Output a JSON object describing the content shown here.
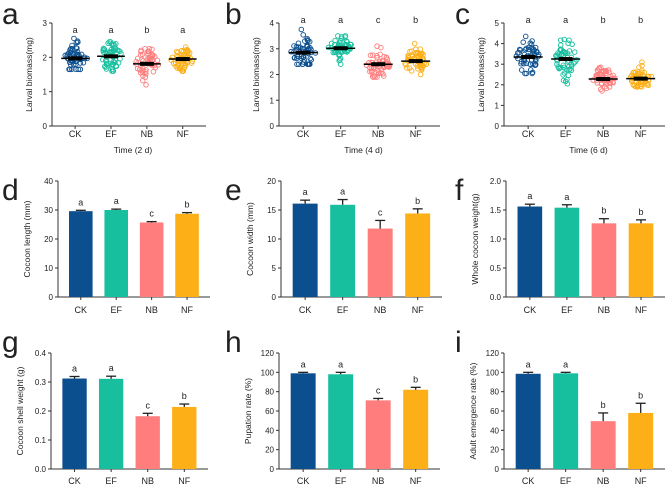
{
  "colors": {
    "CK": "#0b4f8e",
    "EF": "#17bf9f",
    "NB": "#ff7d7d",
    "NF": "#fcaf17"
  },
  "chart_data": [
    {
      "panel": "a",
      "type": "scatter",
      "categories": [
        "CK",
        "EF",
        "NB",
        "NF"
      ],
      "ylabel": "Larval biomass(mg)",
      "xlabel": "Time (2 d)",
      "ylim": [
        0,
        3
      ],
      "yticks": [
        "0",
        "1",
        "2",
        "3"
      ],
      "means": [
        1.97,
        2.03,
        1.81,
        1.95
      ],
      "ranges": [
        [
          1.65,
          2.55
        ],
        [
          1.6,
          2.45
        ],
        [
          1.2,
          2.25
        ],
        [
          1.6,
          2.3
        ]
      ],
      "letters": [
        "a",
        "a",
        "b",
        "a"
      ]
    },
    {
      "panel": "b",
      "type": "scatter",
      "categories": [
        "CK",
        "EF",
        "NB",
        "NF"
      ],
      "ylabel": "Larval biomass(mg)",
      "xlabel": "Time (4 d)",
      "ylim": [
        0,
        4
      ],
      "yticks": [
        "0",
        "1",
        "2",
        "3",
        "4"
      ],
      "means": [
        2.85,
        3.02,
        2.4,
        2.52
      ],
      "ranges": [
        [
          2.4,
          3.75
        ],
        [
          2.4,
          3.5
        ],
        [
          1.9,
          3.1
        ],
        [
          2.0,
          3.2
        ]
      ],
      "letters": [
        "a",
        "a",
        "c",
        "b"
      ]
    },
    {
      "panel": "c",
      "type": "scatter",
      "categories": [
        "CK",
        "EF",
        "NB",
        "NF"
      ],
      "ylabel": "Larval biomass(mg)",
      "xlabel": "Time (6 d)",
      "ylim": [
        0,
        5
      ],
      "yticks": [
        "0",
        "1",
        "2",
        "3",
        "4",
        "5"
      ],
      "means": [
        3.35,
        3.25,
        2.28,
        2.3
      ],
      "ranges": [
        [
          2.55,
          4.35
        ],
        [
          2.05,
          4.2
        ],
        [
          1.7,
          2.85
        ],
        [
          1.9,
          3.1
        ]
      ],
      "letters": [
        "a",
        "a",
        "b",
        "b"
      ]
    },
    {
      "panel": "d",
      "type": "bar",
      "categories": [
        "CK",
        "EF",
        "NB",
        "NF"
      ],
      "ylabel": "Cocoon length (mm)",
      "xlabel": "",
      "ylim": [
        0,
        40
      ],
      "yticks": [
        "0",
        "10",
        "20",
        "30",
        "40"
      ],
      "values": [
        29.6,
        30.0,
        25.7,
        28.7
      ],
      "errors": [
        0.3,
        0.3,
        0.3,
        0.4
      ],
      "letters": [
        "a",
        "a",
        "c",
        "b"
      ]
    },
    {
      "panel": "e",
      "type": "bar",
      "categories": [
        "CK",
        "EF",
        "NB",
        "NF"
      ],
      "ylabel": "Cocoon width (mm)",
      "xlabel": "",
      "ylim": [
        0,
        20
      ],
      "yticks": [
        "0",
        "5",
        "10",
        "15",
        "20"
      ],
      "values": [
        16.1,
        15.9,
        11.8,
        14.4
      ],
      "errors": [
        0.6,
        0.9,
        1.4,
        0.8
      ],
      "letters": [
        "a",
        "a",
        "c",
        "b"
      ]
    },
    {
      "panel": "f",
      "type": "bar",
      "categories": [
        "CK",
        "EF",
        "NB",
        "NF"
      ],
      "ylabel": "Whole cocoon weight(g)",
      "xlabel": "",
      "ylim": [
        0,
        2
      ],
      "yticks": [
        "0.0",
        "0.5",
        "1.0",
        "1.5",
        "2.0"
      ],
      "values": [
        1.56,
        1.54,
        1.27,
        1.27
      ],
      "errors": [
        0.04,
        0.05,
        0.08,
        0.06
      ],
      "letters": [
        "a",
        "a",
        "b",
        "b"
      ]
    },
    {
      "panel": "g",
      "type": "bar",
      "categories": [
        "CK",
        "EF",
        "NB",
        "NF"
      ],
      "ylabel": "Cocoon shell weight (g)",
      "xlabel": "",
      "ylim": [
        0,
        0.4
      ],
      "yticks": [
        "0.0",
        "0.1",
        "0.2",
        "0.3",
        "0.4"
      ],
      "values": [
        0.312,
        0.311,
        0.182,
        0.214
      ],
      "errors": [
        0.007,
        0.009,
        0.01,
        0.01
      ],
      "letters": [
        "a",
        "a",
        "c",
        "b"
      ]
    },
    {
      "panel": "h",
      "type": "bar",
      "categories": [
        "CK",
        "EF",
        "NB",
        "NF"
      ],
      "ylabel": "Pupation rate  (%)",
      "xlabel": "",
      "ylim": [
        0,
        120
      ],
      "yticks": [
        "0",
        "20",
        "40",
        "60",
        "80",
        "100",
        "120"
      ],
      "values": [
        99,
        98,
        71,
        82
      ],
      "errors": [
        1,
        2,
        2,
        2.5
      ],
      "letters": [
        "a",
        "a",
        "c",
        "b"
      ]
    },
    {
      "panel": "i",
      "type": "bar",
      "categories": [
        "CK",
        "EF",
        "NB",
        "NF"
      ],
      "ylabel": "Adult emergence rate  (%)",
      "xlabel": "",
      "ylim": [
        0,
        120
      ],
      "yticks": [
        "0",
        "20",
        "40",
        "60",
        "80",
        "100",
        "120"
      ],
      "values": [
        98.5,
        99,
        49.5,
        58
      ],
      "errors": [
        1.5,
        1,
        8.5,
        10
      ],
      "letters": [
        "a",
        "a",
        "b",
        "b"
      ]
    }
  ]
}
